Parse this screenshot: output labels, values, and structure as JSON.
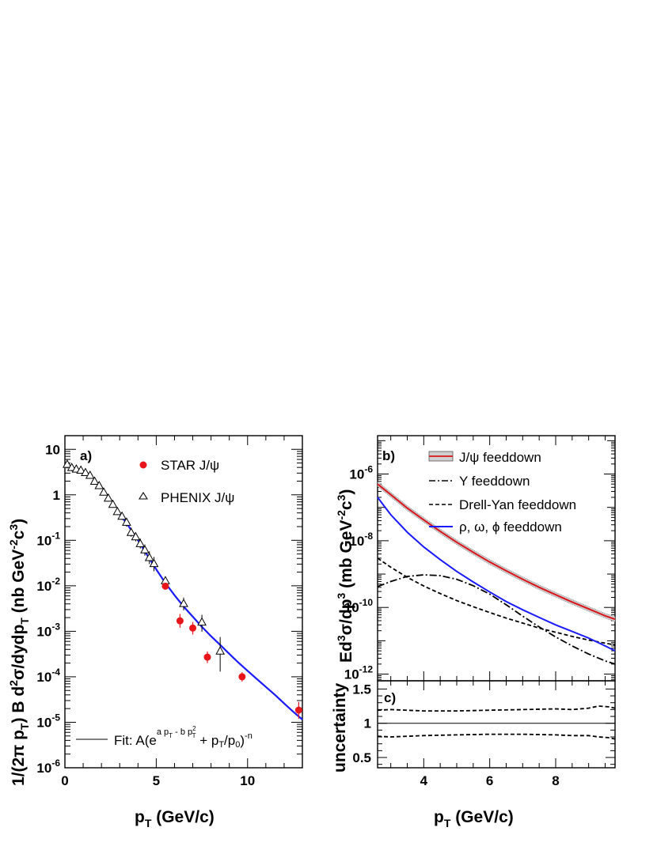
{
  "chart_data": [
    {
      "panel": "a",
      "type": "scatter",
      "panel_label": "a)",
      "xlabel": "p",
      "xlabel_sub": "T",
      "xlabel_unit": " (GeV/c)",
      "ylabel": "1/(2π p",
      "ylabel_sub1": "T",
      "ylabel_mid": ") B d",
      "ylabel_sup1": "2",
      "ylabel_mid2": "σ/dydp",
      "ylabel_sub2": "T",
      "ylabel_unit": "  (nb GeV",
      "ylabel_sup2": "-2",
      "ylabel_c": "c",
      "ylabel_sup3": "3",
      "ylabel_end": ")",
      "xlim": [
        0,
        13
      ],
      "ylim_log10": [
        -6,
        1.3
      ],
      "x_ticks": [
        "0",
        "5",
        "10"
      ],
      "y_ticks": [
        {
          "base": "10",
          "exp": "-6"
        },
        {
          "base": "10",
          "exp": "-5"
        },
        {
          "base": "10",
          "exp": "-4"
        },
        {
          "base": "10",
          "exp": "-3"
        },
        {
          "base": "10",
          "exp": "-2"
        },
        {
          "base": "10",
          "exp": "-1"
        },
        {
          "base": "1",
          "exp": ""
        },
        {
          "base": "10",
          "exp": ""
        }
      ],
      "series": [
        {
          "name": "STAR J/ψ",
          "marker": "circle",
          "color": "#e8151b",
          "x": [
            5.5,
            6.3,
            7.0,
            7.8,
            9.7,
            12.8
          ],
          "y": [
            0.0098,
            0.0017,
            0.00118,
            0.00027,
            0.0001,
            1.85e-05
          ],
          "err_low": [
            0.0085,
            0.0012,
            0.00085,
            0.0002,
            7.85e-05,
            1.2e-05
          ],
          "err_high": [
            0.0114,
            0.0024,
            0.0016,
            0.00036,
            0.000126,
            2.8e-05
          ]
        },
        {
          "name": "PHENIX J/ψ",
          "marker": "triangle",
          "color": "#000000",
          "x": [
            0.125,
            0.375,
            0.625,
            0.875,
            1.125,
            1.375,
            1.625,
            1.875,
            2.125,
            2.375,
            2.625,
            2.875,
            3.125,
            3.375,
            3.625,
            3.875,
            4.125,
            4.375,
            4.625,
            4.875,
            5.5,
            6.5,
            7.5,
            8.5
          ],
          "y": [
            4.7,
            4.0,
            3.7,
            3.5,
            3.1,
            2.7,
            2.0,
            1.6,
            1.15,
            0.85,
            0.62,
            0.43,
            0.34,
            0.25,
            0.15,
            0.12,
            0.085,
            0.062,
            0.042,
            0.031,
            0.013,
            0.0041,
            0.0016,
            0.00037
          ],
          "err_low": [
            3.8,
            3.3,
            3.1,
            3.0,
            2.6,
            2.3,
            1.7,
            1.35,
            0.97,
            0.71,
            0.52,
            0.36,
            0.28,
            0.2,
            0.12,
            0.095,
            0.066,
            0.046,
            0.03,
            0.021,
            0.0103,
            0.0029,
            0.00098,
            0.00013
          ],
          "err_high": [
            5.6,
            4.8,
            4.4,
            4.1,
            3.7,
            3.2,
            2.4,
            1.9,
            1.37,
            1.02,
            0.74,
            0.52,
            0.41,
            0.31,
            0.19,
            0.15,
            0.11,
            0.081,
            0.057,
            0.043,
            0.0159,
            0.0055,
            0.0023,
            0.00075
          ]
        }
      ],
      "fit": {
        "name": "Fit: A(e",
        "exp_text": "a p",
        "exp_sub1": "T",
        "exp_mid": " - b p",
        "exp_sup": "2",
        "exp_sub2": "T",
        "tail_text": " + p",
        "tail_sub1": "T",
        "tail_mid": "/p",
        "tail_sub2": "0",
        "tail_end": ")",
        "tail_sup": "-n",
        "color": "#1a1aff",
        "x": [
          2.9,
          3.5,
          4.0,
          4.5,
          5.0,
          5.5,
          6.0,
          6.5,
          7.0,
          7.5,
          8.0,
          8.5,
          9.0,
          9.5,
          10.0,
          10.5,
          11.0,
          11.5,
          12.0,
          12.5,
          13.0
        ],
        "y": [
          0.43,
          0.2,
          0.1,
          0.048,
          0.023,
          0.0115,
          0.0062,
          0.0035,
          0.0021,
          0.00125,
          0.00078,
          0.0005,
          0.00032,
          0.000205,
          0.000135,
          9e-05,
          6e-05,
          4e-05,
          2.6e-05,
          1.7e-05,
          1.15e-05
        ]
      }
    },
    {
      "panel": "b",
      "type": "line",
      "panel_label": "b)",
      "ylabel": "Ed",
      "ylabel_sup1": "3",
      "ylabel_mid": "σ/dp",
      "ylabel_sup2": "3",
      "ylabel_unit": "  (mb GeV",
      "ylabel_sup3": "-2",
      "ylabel_c": "c",
      "ylabel_sup4": "3",
      "ylabel_end": ")",
      "xlim": [
        2.6,
        9.8
      ],
      "ylim_log10": [
        -12.2,
        -4.85
      ],
      "y_ticks": [
        {
          "base": "10",
          "exp": "-12"
        },
        {
          "base": "10",
          "exp": "-10"
        },
        {
          "base": "10",
          "exp": "-8"
        },
        {
          "base": "10",
          "exp": "-6"
        }
      ],
      "series": [
        {
          "name": "J/ψ feeddown",
          "color": "#d9141a",
          "style": "solid-band",
          "x": [
            2.6,
            3.0,
            3.5,
            4.0,
            4.5,
            5.0,
            5.5,
            6.0,
            6.5,
            7.0,
            7.5,
            8.0,
            8.5,
            9.0,
            9.5,
            9.8
          ],
          "y": [
            5e-07,
            2.4e-07,
            9.5e-08,
            4.2e-08,
            1.9e-08,
            9e-09,
            4.5e-09,
            2.3e-09,
            1.25e-09,
            7e-10,
            4e-10,
            2.4e-10,
            1.45e-10,
            9e-11,
            5.6e-11,
            4.4e-11
          ]
        },
        {
          "name": "Υ feeddown",
          "color": "#000000",
          "style": "dash-dot",
          "x": [
            2.6,
            3.0,
            3.5,
            4.0,
            4.5,
            5.0,
            5.5,
            6.0,
            6.5,
            7.0,
            7.5,
            8.0,
            8.5,
            9.0,
            9.5,
            9.8
          ],
          "y": [
            4.2e-10,
            6e-10,
            8.5e-10,
            9.5e-10,
            9e-10,
            7e-10,
            4.5e-10,
            2.5e-10,
            1.2e-10,
            5.5e-11,
            2.6e-11,
            1.3e-11,
            7e-12,
            4e-12,
            2.5e-12,
            2e-12
          ]
        },
        {
          "name": "Drell-Yan feeddown",
          "color": "#000000",
          "style": "dashed",
          "x": [
            2.6,
            3.0,
            3.5,
            4.0,
            4.5,
            5.0,
            5.5,
            6.0,
            6.5,
            7.0,
            7.5,
            8.0,
            8.5,
            9.0,
            9.5,
            9.8
          ],
          "y": [
            3e-09,
            1.6e-09,
            8e-10,
            4.4e-10,
            2.6e-10,
            1.6e-10,
            1.05e-10,
            7e-11,
            4.8e-11,
            3.4e-11,
            2.4e-11,
            1.8e-11,
            1.35e-11,
            1.05e-11,
            8.5e-12,
            7.5e-12
          ]
        },
        {
          "name": "ρ, ω, ϕ feeddown",
          "color": "#1a1aff",
          "style": "solid",
          "x": [
            2.6,
            3.0,
            3.5,
            4.0,
            4.5,
            5.0,
            5.5,
            6.0,
            6.5,
            7.0,
            7.5,
            8.0,
            8.5,
            9.0,
            9.5,
            9.8
          ],
          "y": [
            2e-07,
            6e-08,
            1.8e-08,
            6.5e-09,
            2.7e-09,
            1.2e-09,
            5.8e-10,
            2.9e-10,
            1.5e-10,
            8.5e-11,
            5e-11,
            3e-11,
            1.9e-11,
            1.2e-11,
            7e-12,
            5e-12
          ]
        }
      ]
    },
    {
      "panel": "c",
      "type": "line",
      "panel_label": "c)",
      "xlabel": "p",
      "xlabel_sub": "T",
      "xlabel_unit": " (GeV/c)",
      "ylabel": "uncertainty",
      "xlim": [
        2.6,
        9.8
      ],
      "ylim": [
        0.35,
        1.62
      ],
      "x_ticks": [
        "4",
        "6",
        "8"
      ],
      "y_ticks": [
        "0.5",
        "1",
        "1.5"
      ],
      "reference_line": 1.0,
      "upper_x": [
        2.6,
        3.0,
        4.0,
        5.0,
        6.0,
        7.0,
        8.0,
        8.5,
        9.0,
        9.3,
        9.6,
        9.8
      ],
      "upper_y": [
        1.19,
        1.2,
        1.18,
        1.18,
        1.19,
        1.2,
        1.21,
        1.2,
        1.22,
        1.25,
        1.24,
        1.22
      ],
      "lower_x": [
        2.6,
        3.0,
        4.0,
        5.0,
        6.0,
        7.0,
        8.0,
        8.5,
        9.0,
        9.3,
        9.6,
        9.8
      ],
      "lower_y": [
        0.81,
        0.8,
        0.82,
        0.83,
        0.84,
        0.84,
        0.83,
        0.82,
        0.82,
        0.8,
        0.79,
        0.77
      ]
    }
  ]
}
